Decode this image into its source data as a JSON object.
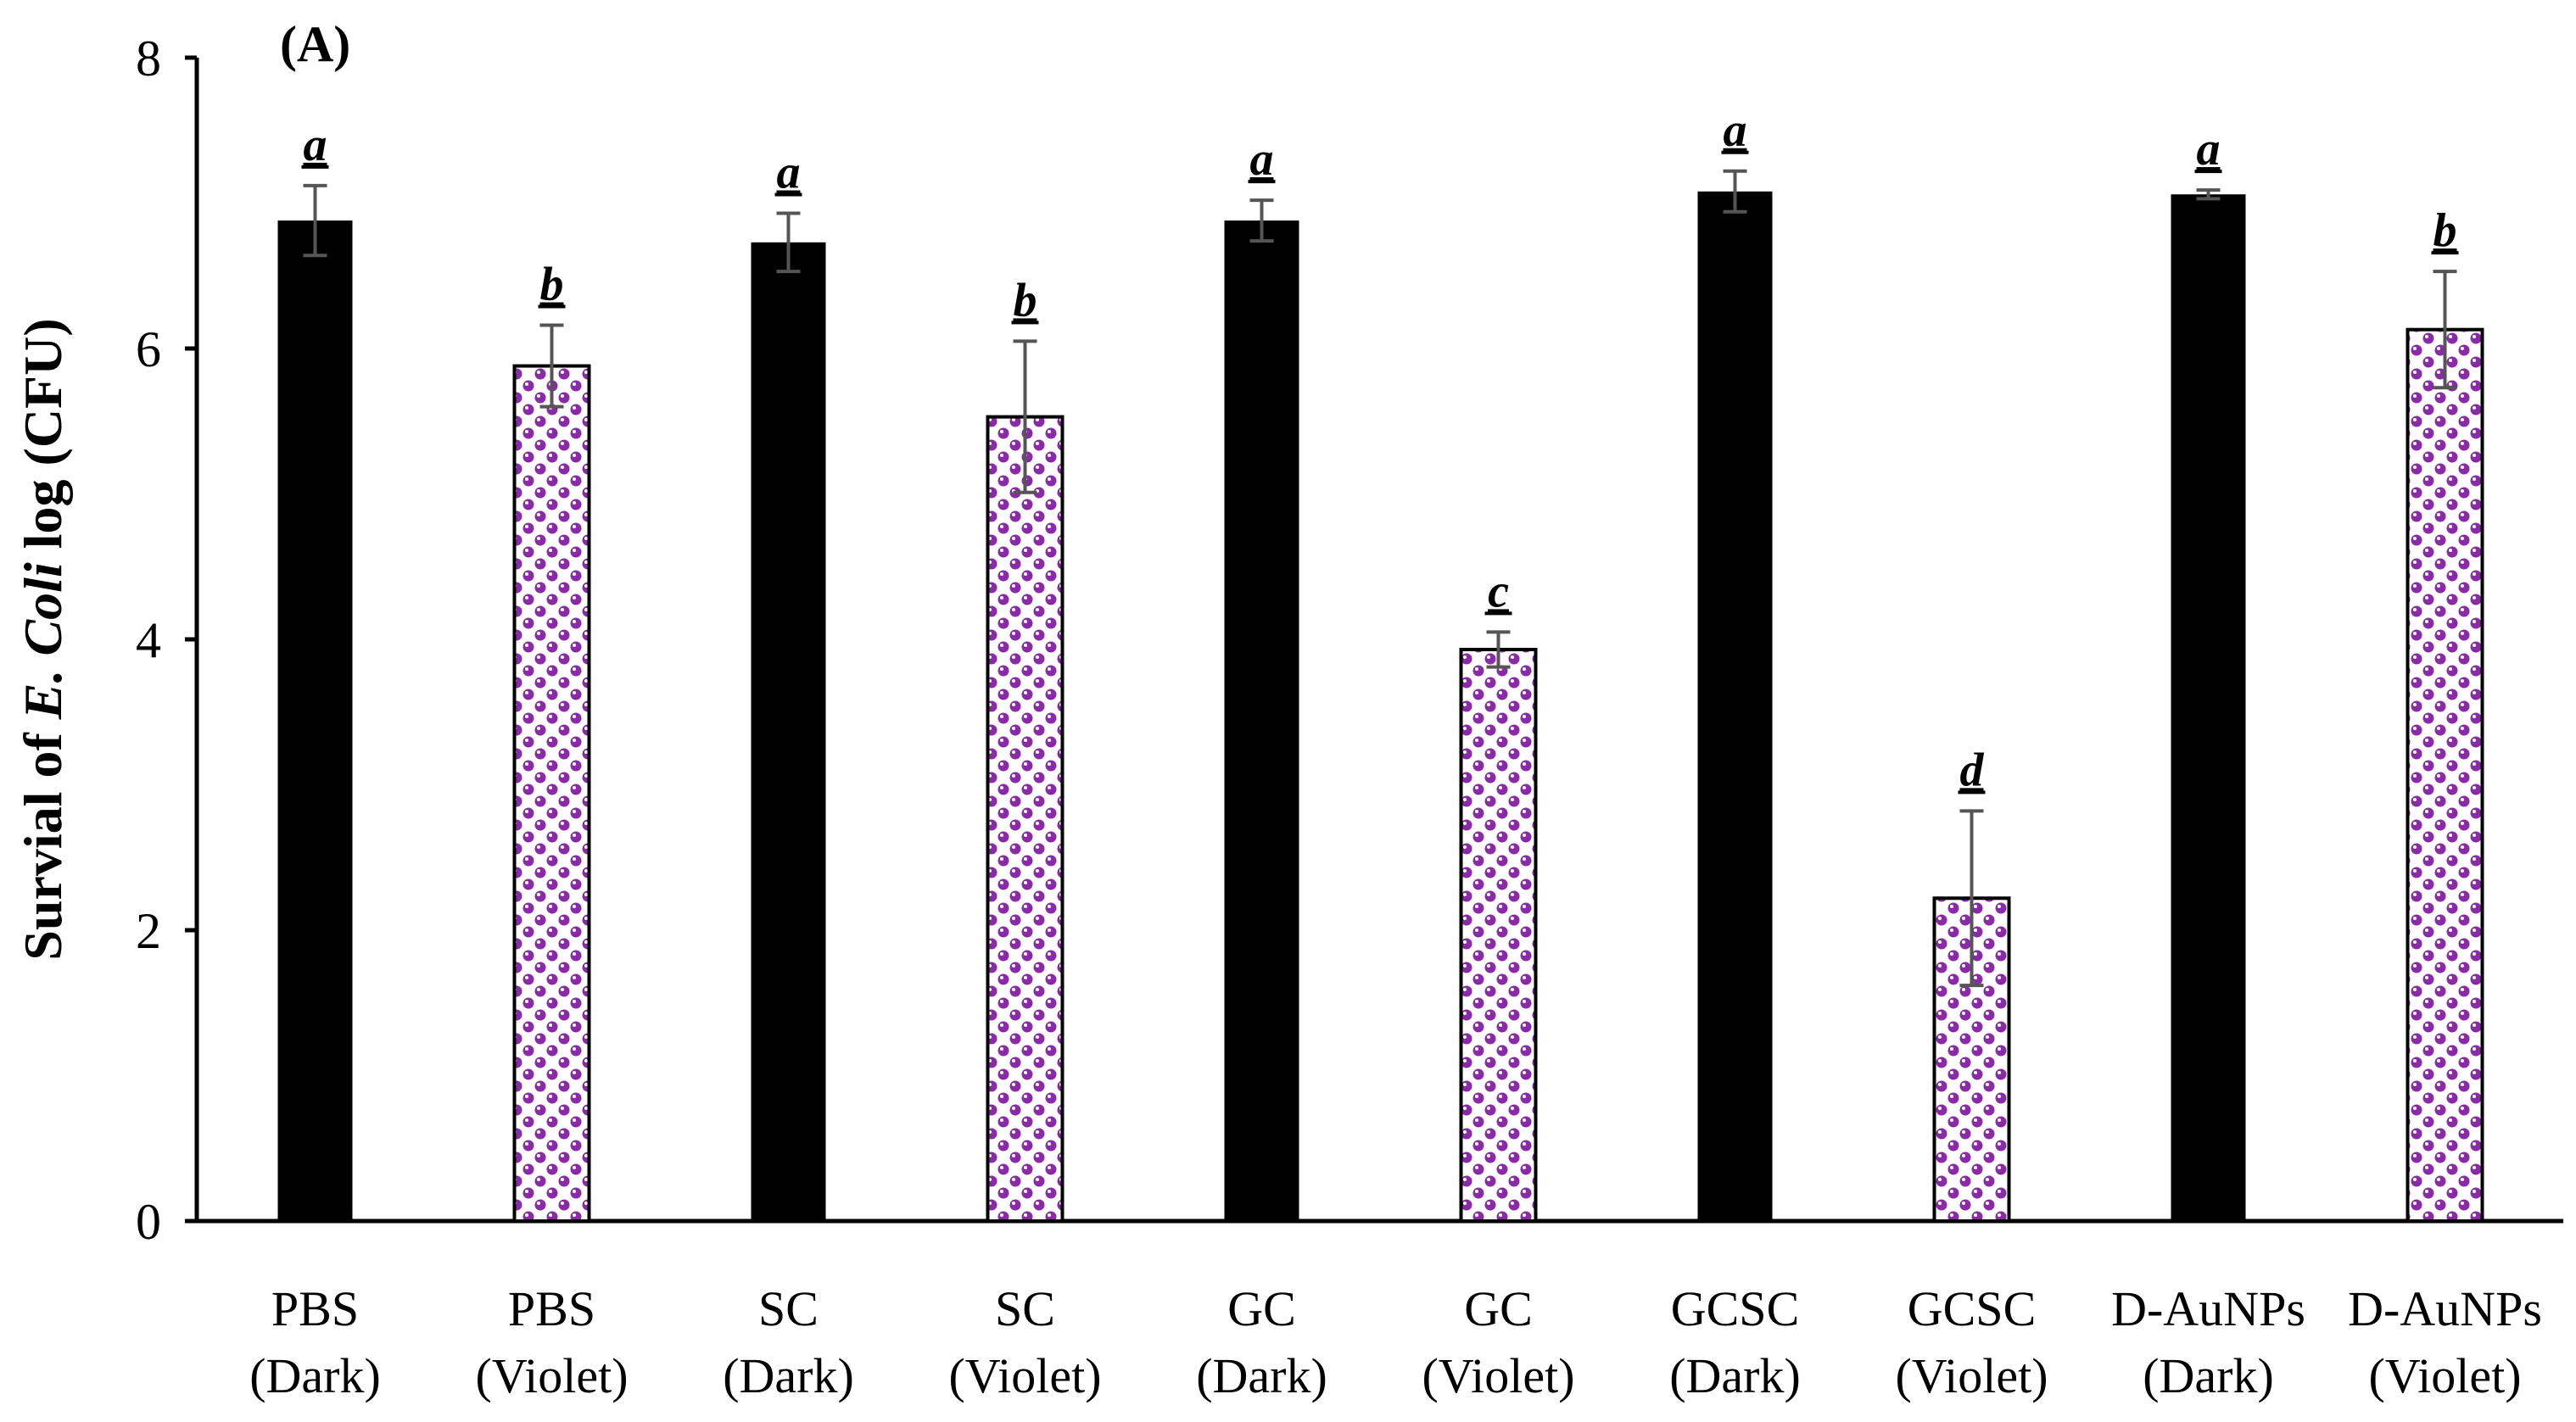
{
  "chart_data": {
    "type": "bar",
    "panel_label": "(A)",
    "title": "",
    "xlabel": "",
    "ylabel_parts": [
      "Survial of ",
      "E. Coli",
      " log (CFU)"
    ],
    "ylim": [
      0,
      8
    ],
    "yticks": [
      "0",
      "2",
      "4",
      "6",
      "8"
    ],
    "colors": {
      "dark": "#000000",
      "violet_pattern_bg": "#ffffff",
      "violet_pattern_fg": "#8a2aa8",
      "error_bar": "#555555"
    },
    "bars": [
      {
        "line1": "PBS",
        "line2": "(Dark)",
        "value": 6.88,
        "error": 0.24,
        "sig": "a",
        "style": "dark"
      },
      {
        "line1": "PBS",
        "line2": "(Violet)",
        "value": 5.88,
        "error": 0.28,
        "sig": "b",
        "style": "violet"
      },
      {
        "line1": "SC",
        "line2": "(Dark)",
        "value": 6.73,
        "error": 0.2,
        "sig": "a",
        "style": "dark"
      },
      {
        "line1": "SC",
        "line2": "(Violet)",
        "value": 5.53,
        "error": 0.52,
        "sig": "b",
        "style": "violet"
      },
      {
        "line1": "GC",
        "line2": "(Dark)",
        "value": 6.88,
        "error": 0.14,
        "sig": "a",
        "style": "dark"
      },
      {
        "line1": "GC",
        "line2": "(Violet)",
        "value": 3.93,
        "error": 0.12,
        "sig": "c",
        "style": "violet"
      },
      {
        "line1": "GCSC",
        "line2": "(Dark)",
        "value": 7.08,
        "error": 0.14,
        "sig": "a",
        "style": "dark"
      },
      {
        "line1": "GCSC",
        "line2": "(Violet)",
        "value": 2.22,
        "error": 0.6,
        "sig": "d",
        "style": "violet"
      },
      {
        "line1": "D-AuNPs",
        "line2": "(Dark)",
        "value": 7.06,
        "error": 0.03,
        "sig": "a",
        "style": "dark"
      },
      {
        "line1": "D-AuNPs",
        "line2": "(Violet)",
        "value": 6.13,
        "error": 0.4,
        "sig": "b",
        "style": "violet"
      }
    ]
  }
}
